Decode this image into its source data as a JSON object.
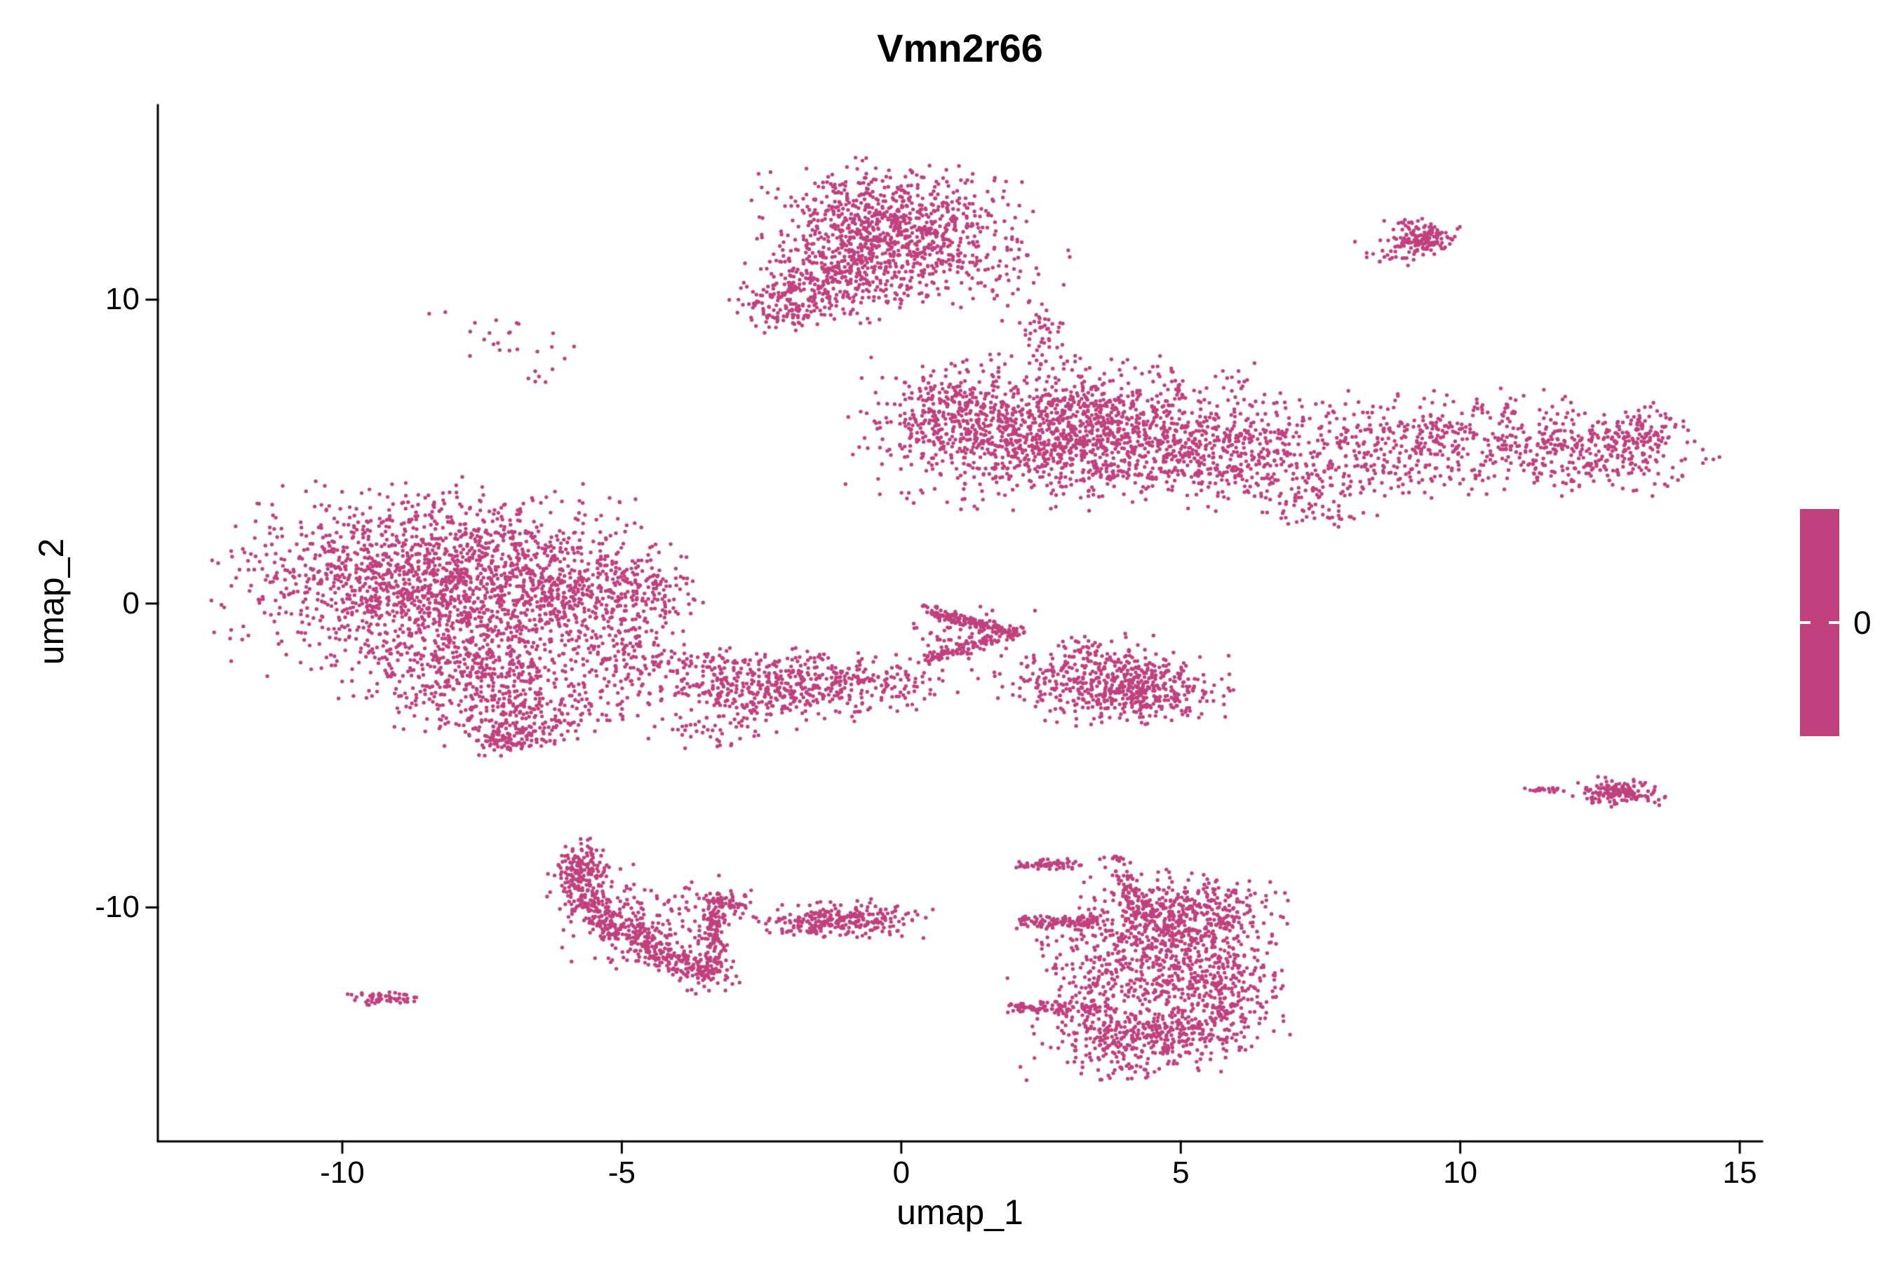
{
  "chart_data": {
    "type": "scatter",
    "title": "Vmn2r66",
    "xlabel": "umap_1",
    "ylabel": "umap_2",
    "xlim": [
      -13.3,
      15.4
    ],
    "ylim": [
      -17.7,
      16.4
    ],
    "x_ticks": [
      "-10",
      "-5",
      "0",
      "5",
      "10",
      "15"
    ],
    "x_tick_values": [
      -10,
      -5,
      0,
      5,
      10,
      15
    ],
    "y_ticks": [
      "10",
      "0",
      "-10"
    ],
    "y_tick_values": [
      10,
      0,
      -10
    ],
    "grid": false,
    "background": "#ffffff",
    "axis_color": "#000000",
    "point_color": "#C0417E",
    "point_radius_px": 2.7,
    "legend": {
      "position": "right",
      "type": "colorbar",
      "label": "0",
      "color": "#C0417E"
    },
    "clusters": [
      {
        "t": "b",
        "n": 900,
        "x": -0.2,
        "y": 12.3,
        "sx": 1.05,
        "sy": 0.95
      },
      {
        "t": "b",
        "n": 260,
        "x": -1.1,
        "y": 10.6,
        "sx": 0.75,
        "sy": 0.6
      },
      {
        "t": "b",
        "n": 130,
        "x": -2.0,
        "y": 9.9,
        "sx": 0.5,
        "sy": 0.4
      },
      {
        "t": "b",
        "n": 70,
        "x": 1.4,
        "y": 10.9,
        "sx": 0.8,
        "sy": 0.8
      },
      {
        "t": "b",
        "n": 45,
        "x": 2.5,
        "y": 8.9,
        "sx": 0.22,
        "sy": 0.5
      },
      {
        "t": "b",
        "n": 150,
        "x": 9.3,
        "y": 12.0,
        "sx": 0.3,
        "sy": 0.28
      },
      {
        "t": "b",
        "n": 18,
        "x": 8.7,
        "y": 11.5,
        "sx": 0.25,
        "sy": 0.2
      },
      {
        "t": "b",
        "n": 22,
        "x": -6.9,
        "y": 8.8,
        "sx": 0.7,
        "sy": 0.5
      },
      {
        "t": "b",
        "n": 6,
        "x": -6.4,
        "y": 7.5,
        "sx": 0.15,
        "sy": 0.2
      },
      {
        "t": "b",
        "n": 1500,
        "x": 3.0,
        "y": 5.6,
        "sx": 1.6,
        "sy": 1.05
      },
      {
        "t": "b",
        "n": 160,
        "x": 0.8,
        "y": 6.4,
        "sx": 0.5,
        "sy": 0.75
      },
      {
        "t": "b",
        "n": 260,
        "x": 5.9,
        "y": 5.0,
        "sx": 1.0,
        "sy": 0.8
      },
      {
        "t": "b",
        "n": 500,
        "x": 9.6,
        "y": 5.3,
        "sx": 1.8,
        "sy": 0.75
      },
      {
        "t": "b",
        "n": 240,
        "x": 12.4,
        "y": 5.0,
        "sx": 0.9,
        "sy": 0.6
      },
      {
        "t": "b",
        "n": 80,
        "x": 13.2,
        "y": 5.6,
        "sx": 0.35,
        "sy": 0.45
      },
      {
        "t": "b",
        "n": 130,
        "x": 7.4,
        "y": 4.1,
        "sx": 1.3,
        "sy": 0.5
      },
      {
        "t": "b",
        "n": 40,
        "x": 7.6,
        "y": 3.0,
        "sx": 0.5,
        "sy": 0.25
      },
      {
        "t": "b",
        "n": 1700,
        "x": -8.3,
        "y": 0.8,
        "sx": 1.65,
        "sy": 1.35
      },
      {
        "t": "b",
        "n": 320,
        "x": -5.6,
        "y": 0.3,
        "sx": 0.9,
        "sy": 0.9
      },
      {
        "t": "b",
        "n": 480,
        "x": -7.5,
        "y": -2.2,
        "sx": 1.2,
        "sy": 0.8
      },
      {
        "t": "b",
        "n": 200,
        "x": -6.9,
        "y": -3.7,
        "sx": 0.8,
        "sy": 0.5
      },
      {
        "t": "b",
        "n": 90,
        "x": -7.0,
        "y": -4.5,
        "sx": 0.35,
        "sy": 0.22
      },
      {
        "t": "b",
        "n": 90,
        "x": -4.9,
        "y": -1.5,
        "sx": 0.5,
        "sy": 0.6
      },
      {
        "t": "b",
        "n": 60,
        "x": -4.6,
        "y": 0.6,
        "sx": 0.4,
        "sy": 0.5
      },
      {
        "t": "b",
        "n": 360,
        "x": -2.8,
        "y": -2.8,
        "sx": 1.05,
        "sy": 0.5
      },
      {
        "t": "b",
        "n": 200,
        "x": -0.9,
        "y": -2.6,
        "sx": 0.8,
        "sy": 0.45
      },
      {
        "t": "b",
        "n": 60,
        "x": -3.4,
        "y": -1.9,
        "sx": 0.8,
        "sy": 0.25
      },
      {
        "t": "b",
        "n": 40,
        "x": -3.2,
        "y": -4.2,
        "sx": 0.6,
        "sy": 0.25
      },
      {
        "t": "p",
        "n": 160,
        "pts": [
          [
            0.4,
            -0.25
          ],
          [
            2.1,
            -1.0
          ]
        ],
        "w": 0.1
      },
      {
        "t": "p",
        "n": 90,
        "pts": [
          [
            0.5,
            -1.8
          ],
          [
            1.7,
            -1.15
          ]
        ],
        "w": 0.1
      },
      {
        "t": "b",
        "n": 70,
        "x": 1.2,
        "y": -1.0,
        "sx": 0.5,
        "sy": 0.38
      },
      {
        "t": "b",
        "n": 480,
        "x": 4.2,
        "y": -2.8,
        "sx": 0.75,
        "sy": 0.5
      },
      {
        "t": "b",
        "n": 110,
        "x": 2.9,
        "y": -2.4,
        "sx": 0.7,
        "sy": 0.5
      },
      {
        "t": "b",
        "n": 50,
        "x": 3.5,
        "y": -1.5,
        "sx": 0.5,
        "sy": 0.3
      },
      {
        "t": "b",
        "n": 150,
        "x": 12.8,
        "y": -6.2,
        "sx": 0.35,
        "sy": 0.2
      },
      {
        "t": "p",
        "n": 22,
        "pts": [
          [
            11.2,
            -6.1
          ],
          [
            11.8,
            -6.15
          ]
        ],
        "w": 0.05
      },
      {
        "t": "b",
        "n": 130,
        "x": -5.7,
        "y": -8.6,
        "sx": 0.22,
        "sy": 0.35
      },
      {
        "t": "p",
        "n": 420,
        "pts": [
          [
            -5.8,
            -9.2
          ],
          [
            -5.3,
            -10.4
          ],
          [
            -4.5,
            -11.4
          ],
          [
            -3.8,
            -12.0
          ],
          [
            -3.3,
            -12.3
          ]
        ],
        "w": 0.25
      },
      {
        "t": "b",
        "n": 160,
        "x": -4.5,
        "y": -10.4,
        "sx": 0.75,
        "sy": 0.75
      },
      {
        "t": "p",
        "n": 150,
        "pts": [
          [
            -3.3,
            -9.6
          ],
          [
            -3.4,
            -12.1
          ]
        ],
        "w": 0.12
      },
      {
        "t": "b",
        "n": 40,
        "x": -3.0,
        "y": -9.9,
        "sx": 0.25,
        "sy": 0.3
      },
      {
        "t": "b",
        "n": 55,
        "x": -9.25,
        "y": -13.0,
        "sx": 0.28,
        "sy": 0.1
      },
      {
        "t": "b",
        "n": 230,
        "x": -0.9,
        "y": -10.4,
        "sx": 0.6,
        "sy": 0.28
      },
      {
        "t": "b",
        "n": 40,
        "x": -1.9,
        "y": -10.6,
        "sx": 0.3,
        "sy": 0.18
      },
      {
        "t": "p",
        "n": 60,
        "pts": [
          [
            2.2,
            -8.6
          ],
          [
            3.1,
            -8.6
          ]
        ],
        "w": 0.08
      },
      {
        "t": "b",
        "n": 16,
        "x": 3.85,
        "y": -8.4,
        "sx": 0.15,
        "sy": 0.1
      },
      {
        "t": "p",
        "n": 50,
        "pts": [
          [
            3.9,
            -8.8
          ],
          [
            4.3,
            -10.1
          ]
        ],
        "w": 0.12
      },
      {
        "t": "p",
        "n": 110,
        "pts": [
          [
            2.1,
            -10.5
          ],
          [
            3.6,
            -10.4
          ]
        ],
        "w": 0.12
      },
      {
        "t": "b",
        "n": 520,
        "x": 5.0,
        "y": -10.3,
        "sx": 0.8,
        "sy": 0.65
      },
      {
        "t": "b",
        "n": 360,
        "x": 4.6,
        "y": -12.2,
        "sx": 0.9,
        "sy": 0.7
      },
      {
        "t": "p",
        "n": 100,
        "pts": [
          [
            2.0,
            -13.3
          ],
          [
            3.8,
            -13.3
          ]
        ],
        "w": 0.12
      },
      {
        "t": "b",
        "n": 470,
        "x": 4.3,
        "y": -14.2,
        "sx": 0.9,
        "sy": 0.6
      },
      {
        "t": "b",
        "n": 200,
        "x": 5.8,
        "y": -12.7,
        "sx": 0.5,
        "sy": 0.8
      },
      {
        "t": "b",
        "n": 80,
        "x": 3.9,
        "y": -11.3,
        "sx": 1.0,
        "sy": 0.45
      }
    ]
  }
}
